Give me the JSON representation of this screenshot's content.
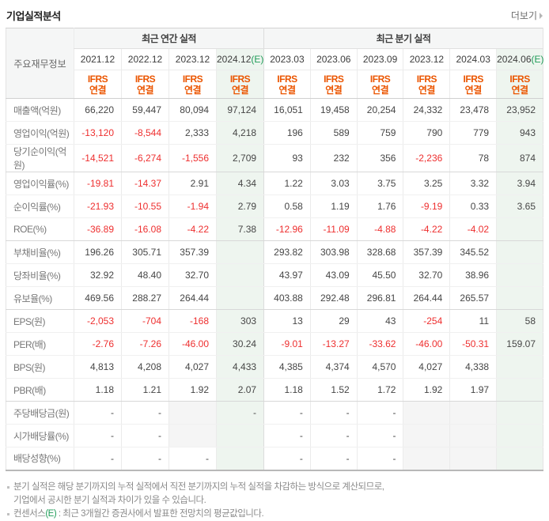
{
  "header": {
    "title": "기업실적분석",
    "more_label": "더보기"
  },
  "table": {
    "row_header_label": "주요재무정보",
    "standard_line1": "IFRS",
    "standard_line2": "연결",
    "estimate_suffix": "(E)",
    "accent_colors": {
      "ifrs_orange": "#eb5500",
      "estimate_green": "#1e9b57",
      "negative_red": "#ee2f2f",
      "estimate_bg": "#eef5ef"
    },
    "groups": [
      {
        "label": "최근 연간 실적",
        "columns": [
          {
            "date": "2021.12",
            "estimate": false
          },
          {
            "date": "2022.12",
            "estimate": false
          },
          {
            "date": "2023.12",
            "estimate": false
          },
          {
            "date": "2024.12",
            "estimate": true
          }
        ]
      },
      {
        "label": "최근 분기 실적",
        "columns": [
          {
            "date": "2023.03",
            "estimate": false
          },
          {
            "date": "2023.06",
            "estimate": false
          },
          {
            "date": "2023.09",
            "estimate": false
          },
          {
            "date": "2023.12",
            "estimate": false
          },
          {
            "date": "2024.03",
            "estimate": false
          },
          {
            "date": "2024.06",
            "estimate": true
          }
        ]
      }
    ],
    "rows": [
      {
        "label": "매출액(억원)",
        "annual": [
          "66,220",
          "59,447",
          "80,094",
          "97,124"
        ],
        "quarter": [
          "16,051",
          "19,458",
          "20,254",
          "24,332",
          "23,478",
          "23,952"
        ]
      },
      {
        "label": "영업이익(억원)",
        "annual": [
          "-13,120",
          "-8,544",
          "2,333",
          "4,218"
        ],
        "quarter": [
          "196",
          "589",
          "759",
          "790",
          "779",
          "943"
        ]
      },
      {
        "label": "당기순이익(억원)",
        "annual": [
          "-14,521",
          "-6,274",
          "-1,556",
          "2,709"
        ],
        "quarter": [
          "93",
          "232",
          "356",
          "-2,236",
          "78",
          "874"
        ],
        "group_end": true
      },
      {
        "label": "영업이익률(%)",
        "annual": [
          "-19.81",
          "-14.37",
          "2.91",
          "4.34"
        ],
        "quarter": [
          "1.22",
          "3.03",
          "3.75",
          "3.25",
          "3.32",
          "3.94"
        ]
      },
      {
        "label": "순이익률(%)",
        "annual": [
          "-21.93",
          "-10.55",
          "-1.94",
          "2.79"
        ],
        "quarter": [
          "0.58",
          "1.19",
          "1.76",
          "-9.19",
          "0.33",
          "3.65"
        ]
      },
      {
        "label": "ROE(%)",
        "annual": [
          "-36.89",
          "-16.08",
          "-4.22",
          "7.38"
        ],
        "quarter": [
          "-12.96",
          "-11.09",
          "-4.88",
          "-4.22",
          "-4.02",
          ""
        ],
        "group_end": true
      },
      {
        "label": "부채비율(%)",
        "annual": [
          "196.26",
          "305.71",
          "357.39",
          ""
        ],
        "quarter": [
          "293.82",
          "303.98",
          "328.68",
          "357.39",
          "345.52",
          ""
        ]
      },
      {
        "label": "당좌비율(%)",
        "annual": [
          "32.92",
          "48.40",
          "32.70",
          ""
        ],
        "quarter": [
          "43.97",
          "43.09",
          "45.50",
          "32.70",
          "38.96",
          ""
        ]
      },
      {
        "label": "유보율(%)",
        "annual": [
          "469.56",
          "288.27",
          "264.44",
          ""
        ],
        "quarter": [
          "403.88",
          "292.48",
          "296.81",
          "264.44",
          "265.57",
          ""
        ],
        "group_end": true
      },
      {
        "label": "EPS(원)",
        "annual": [
          "-2,053",
          "-704",
          "-168",
          "303"
        ],
        "quarter": [
          "13",
          "29",
          "43",
          "-254",
          "11",
          "58"
        ]
      },
      {
        "label": "PER(배)",
        "annual": [
          "-2.76",
          "-7.26",
          "-46.00",
          "30.24"
        ],
        "quarter": [
          "-9.01",
          "-13.27",
          "-33.62",
          "-46.00",
          "-50.31",
          "159.07"
        ]
      },
      {
        "label": "BPS(원)",
        "annual": [
          "4,813",
          "4,208",
          "4,027",
          "4,433"
        ],
        "quarter": [
          "4,385",
          "4,374",
          "4,570",
          "4,027",
          "4,338",
          ""
        ]
      },
      {
        "label": "PBR(배)",
        "annual": [
          "1.18",
          "1.21",
          "1.92",
          "2.07"
        ],
        "quarter": [
          "1.18",
          "1.52",
          "1.72",
          "1.92",
          "1.97",
          ""
        ],
        "group_end": true
      },
      {
        "label": "주당배당금(원)",
        "annual": [
          "-",
          "-",
          "",
          "-"
        ],
        "quarter": [
          "-",
          "-",
          "-",
          "",
          "",
          ""
        ],
        "annual_muted": [
          2
        ],
        "quarter_muted": [
          3,
          4
        ]
      },
      {
        "label": "시가배당률(%)",
        "annual": [
          "-",
          "-",
          "",
          ""
        ],
        "quarter": [
          "-",
          "-",
          "-",
          "",
          "",
          ""
        ],
        "annual_muted": [
          2
        ],
        "quarter_muted": [
          3,
          4
        ]
      },
      {
        "label": "배당성향(%)",
        "annual": [
          "-",
          "-",
          "-",
          ""
        ],
        "quarter": [
          "-",
          "-",
          "-",
          "",
          "",
          ""
        ],
        "quarter_muted": [
          3,
          4
        ]
      }
    ]
  },
  "footnotes": [
    {
      "lines": [
        [
          {
            "text": "분기 실적은 해당 분기까지의 누적 실적에서 직전 분기까지의 누적 실적을 차감하는 방식으로 계산되므로,"
          }
        ],
        [
          {
            "text": "기업에서 공시한 분기 실적과 차이가 있을 수 있습니다."
          }
        ]
      ]
    },
    {
      "lines": [
        [
          {
            "text": "컨센서스"
          },
          {
            "text": "(E)",
            "accent": true
          },
          {
            "text": " : 최근 3개월간 증권사에서 발표한 전망치의 평균값입니다."
          }
        ]
      ]
    }
  ]
}
